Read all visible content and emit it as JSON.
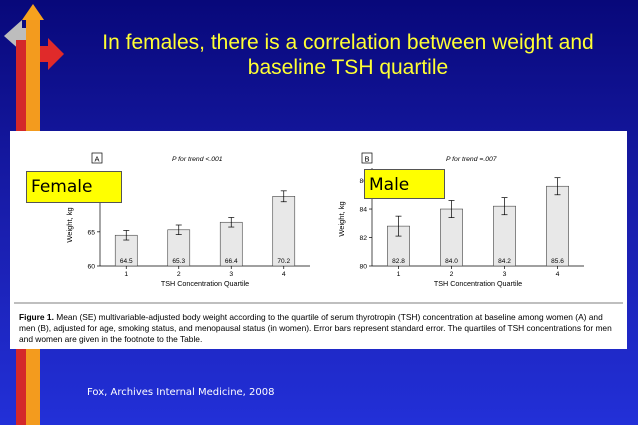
{
  "slide": {
    "title": "In females, there is a correlation between weight and baseline TSH quartile",
    "source": "Fox, Archives Internal Medicine, 2008"
  },
  "figure": {
    "caption_lead": "Figure 1.",
    "caption_body": " Mean (SE) multivariable-adjusted body weight according to the quartile of serum thyrotropin (TSH) concentration at baseline among women (A) and men (B), adjusted for age, smoking status, and menopausal status (in women). Error bars represent standard error. The quartiles of TSH concentrations for men and women are given in the footnote to the Table."
  },
  "colors": {
    "bar_fill": "#e8e8e8",
    "title": "#ffff33",
    "label_bg": "#ffff00"
  },
  "chart_data": [
    {
      "type": "bar",
      "panel": "A",
      "overlay_label": "Female",
      "trend": "P for trend <.001",
      "categories": [
        "1",
        "2",
        "3",
        "4"
      ],
      "values": [
        64.5,
        65.3,
        66.4,
        70.2
      ],
      "value_labels": [
        "64.5",
        "65.3",
        "66.4",
        "70.2"
      ],
      "errors": [
        0.7,
        0.7,
        0.7,
        0.8
      ],
      "ylim": [
        60,
        72
      ],
      "yticks": [
        "60",
        "65",
        "70"
      ],
      "ytick_values": [
        60,
        65,
        70
      ],
      "xlabel": "TSH Concentration Quartile",
      "ylabel": "Weight, kg"
    },
    {
      "type": "bar",
      "panel": "B",
      "overlay_label": "Male",
      "trend": "P for trend =.007",
      "categories": [
        "1",
        "2",
        "3",
        "4"
      ],
      "values": [
        82.8,
        84.0,
        84.2,
        85.6
      ],
      "value_labels": [
        "82.8",
        "84.0",
        "84.2",
        "85.6"
      ],
      "errors": [
        0.7,
        0.6,
        0.6,
        0.6
      ],
      "ylim": [
        80,
        86.6
      ],
      "yticks": [
        "80",
        "82",
        "84",
        "86"
      ],
      "ytick_values": [
        80,
        82,
        84,
        86
      ],
      "xlabel": "TSH Concentration Quartile",
      "ylabel": "Weight, kg"
    }
  ]
}
